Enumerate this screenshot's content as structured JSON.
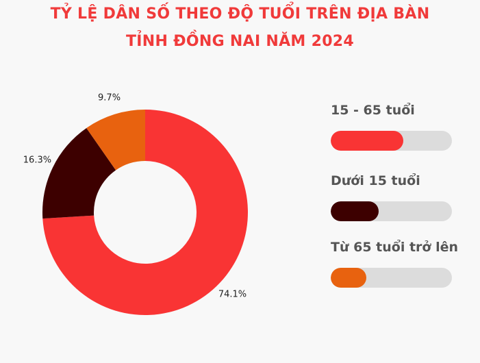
{
  "chart_data": {
    "type": "donut",
    "title": [
      "TỶ LỆ DÂN SỐ THEO ĐỘ TUỔI TRÊN ĐỊA BÀN",
      "TỈNH ĐỒNG NAI NĂM 2024"
    ],
    "categories": [
      "15 - 65 tuổi",
      "Dưới 15 tuổi",
      "Từ 65 tuổi trở lên"
    ],
    "values": [
      74.1,
      16.3,
      9.7
    ],
    "value_labels": [
      "74.1%",
      "16.3%",
      "9.7%"
    ],
    "colors": [
      "#f93434",
      "#3d0000",
      "#e8620f"
    ]
  }
}
